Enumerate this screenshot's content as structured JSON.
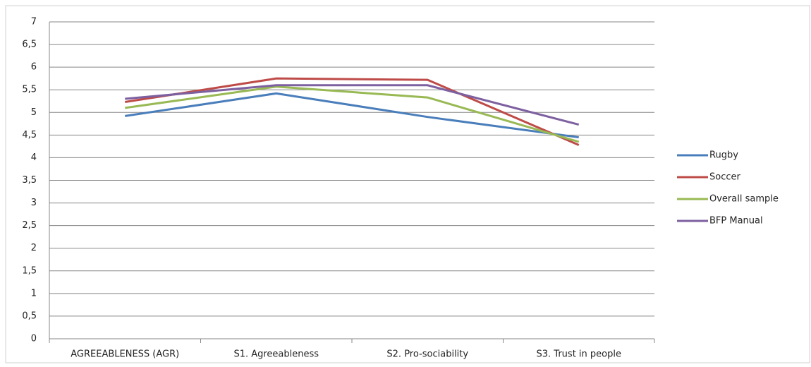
{
  "chart_data": {
    "type": "line",
    "categories": [
      "AGREEABLENESS (AGR)",
      "S1. Agreeableness",
      "S2. Pro-sociability",
      "S3. Trust in people"
    ],
    "series": [
      {
        "name": "Rugby",
        "color": "#4a7ebb",
        "values": [
          4.92,
          5.42,
          4.9,
          4.45
        ]
      },
      {
        "name": "Soccer",
        "color": "#be4b48",
        "values": [
          5.23,
          5.75,
          5.72,
          4.28
        ]
      },
      {
        "name": "Overall sample",
        "color": "#98b954",
        "values": [
          5.1,
          5.57,
          5.33,
          4.35
        ]
      },
      {
        "name": "BFP Manual",
        "color": "#7d60a0",
        "values": [
          5.3,
          5.6,
          5.6,
          4.73
        ]
      }
    ],
    "ylim": [
      0,
      7
    ],
    "yticks": [
      0,
      {
        "value": 0.5,
        "label": "0,5"
      },
      1,
      {
        "value": 1.5,
        "label": "1,5"
      },
      2,
      {
        "value": 2.5,
        "label": "2,5"
      },
      3,
      {
        "value": 3.5,
        "label": "3,5"
      },
      4,
      {
        "value": 4.5,
        "label": "4,5"
      },
      5,
      {
        "value": 5.5,
        "label": "5,5"
      },
      6,
      {
        "value": 6.5,
        "label": "6,5"
      },
      7
    ],
    "grid": true,
    "legend": "right"
  }
}
